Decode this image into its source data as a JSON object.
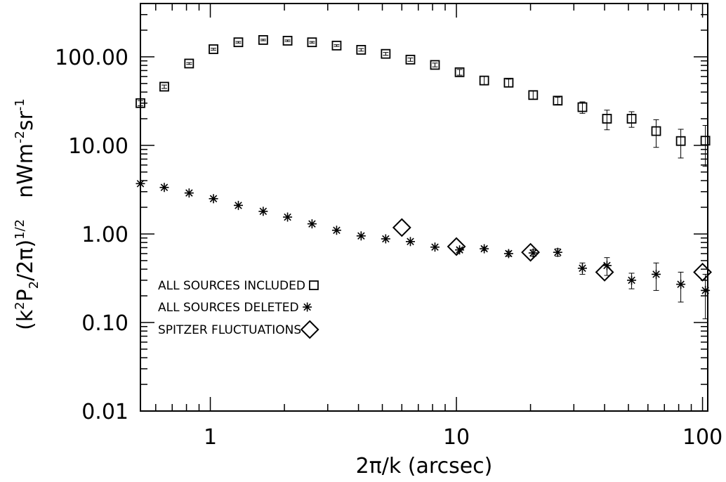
{
  "chart_data": {
    "type": "scatter",
    "title": "",
    "xlabel": "2π/k    (arcsec)",
    "ylabel": {
      "prefix": "(k",
      "sq": "2",
      "p": "P",
      "p_sub": "2",
      "div": "/2π)",
      "exp": "1/2",
      "units": "nWm",
      "units_exp1": "-2",
      "sr": "sr",
      "units_exp2": "-1"
    },
    "x_scale": "log",
    "y_scale": "log",
    "xlim": [
      0.52,
      105
    ],
    "ylim": [
      0.01,
      400
    ],
    "x_ticks": [
      {
        "value": 1,
        "label": "1"
      },
      {
        "value": 10,
        "label": "10"
      },
      {
        "value": 100,
        "label": "100"
      }
    ],
    "y_ticks": [
      {
        "value": 0.01,
        "label": "0.01"
      },
      {
        "value": 0.1,
        "label": "0.10"
      },
      {
        "value": 1,
        "label": "1.00"
      },
      {
        "value": 10,
        "label": "10.00"
      },
      {
        "value": 100,
        "label": "100.00"
      }
    ],
    "legend_position": "lower-left",
    "series": [
      {
        "name": "ALL SOURCES INCLUDED",
        "marker": "square",
        "points": [
          {
            "x": 0.52,
            "y": 30,
            "err": 2
          },
          {
            "x": 0.65,
            "y": 46,
            "err": 2
          },
          {
            "x": 0.82,
            "y": 84,
            "err": 2
          },
          {
            "x": 1.03,
            "y": 122,
            "err": 3
          },
          {
            "x": 1.3,
            "y": 146,
            "err": 3
          },
          {
            "x": 1.64,
            "y": 155,
            "err": 3
          },
          {
            "x": 2.06,
            "y": 152,
            "err": 3
          },
          {
            "x": 2.59,
            "y": 146,
            "err": 3
          },
          {
            "x": 3.26,
            "y": 134,
            "err": 3
          },
          {
            "x": 4.1,
            "y": 120,
            "err": 4
          },
          {
            "x": 5.16,
            "y": 108,
            "err": 4
          },
          {
            "x": 6.5,
            "y": 93,
            "err": 4
          },
          {
            "x": 8.18,
            "y": 81,
            "err": 4
          },
          {
            "x": 10.3,
            "y": 67,
            "err": 5
          },
          {
            "x": 12.97,
            "y": 54,
            "err": 6
          },
          {
            "x": 16.3,
            "y": 51,
            "err": 5
          },
          {
            "x": 20.5,
            "y": 37,
            "err": 4
          },
          {
            "x": 25.8,
            "y": 32,
            "err": 3
          },
          {
            "x": 32.5,
            "y": 27,
            "err": 4
          },
          {
            "x": 40.9,
            "y": 20,
            "err": 5
          },
          {
            "x": 51.5,
            "y": 20,
            "err": 4
          },
          {
            "x": 64.8,
            "y": 14.5,
            "err": 5
          },
          {
            "x": 81.6,
            "y": 11.2,
            "err": 4
          },
          {
            "x": 102.7,
            "y": 11.3,
            "err": 5.5
          }
        ]
      },
      {
        "name": "ALL SOURCES DELETED",
        "marker": "asterisk",
        "points": [
          {
            "x": 0.52,
            "y": 3.7,
            "err": 0
          },
          {
            "x": 0.65,
            "y": 3.35,
            "err": 0
          },
          {
            "x": 0.82,
            "y": 2.9,
            "err": 0
          },
          {
            "x": 1.03,
            "y": 2.5,
            "err": 0
          },
          {
            "x": 1.3,
            "y": 2.1,
            "err": 0
          },
          {
            "x": 1.64,
            "y": 1.8,
            "err": 0
          },
          {
            "x": 2.06,
            "y": 1.55,
            "err": 0
          },
          {
            "x": 2.59,
            "y": 1.3,
            "err": 0
          },
          {
            "x": 3.26,
            "y": 1.1,
            "err": 0
          },
          {
            "x": 4.1,
            "y": 0.95,
            "err": 0
          },
          {
            "x": 5.16,
            "y": 0.88,
            "err": 0
          },
          {
            "x": 6.5,
            "y": 0.82,
            "err": 0
          },
          {
            "x": 8.18,
            "y": 0.71,
            "err": 0
          },
          {
            "x": 10.3,
            "y": 0.66,
            "err": 0.03
          },
          {
            "x": 12.97,
            "y": 0.68,
            "err": 0.03
          },
          {
            "x": 16.3,
            "y": 0.6,
            "err": 0.04
          },
          {
            "x": 20.5,
            "y": 0.61,
            "err": 0.05
          },
          {
            "x": 25.8,
            "y": 0.62,
            "err": 0.06
          },
          {
            "x": 32.5,
            "y": 0.41,
            "err": 0.06
          },
          {
            "x": 40.9,
            "y": 0.44,
            "err": 0.1
          },
          {
            "x": 51.5,
            "y": 0.3,
            "err": 0.06
          },
          {
            "x": 64.8,
            "y": 0.35,
            "err": 0.12
          },
          {
            "x": 81.6,
            "y": 0.27,
            "err": 0.1
          },
          {
            "x": 102.7,
            "y": 0.23,
            "err": 0.12
          }
        ]
      },
      {
        "name": "SPITZER FLUCTUATIONS",
        "marker": "diamond",
        "points": [
          {
            "x": 6.0,
            "y": 1.18
          },
          {
            "x": 10.0,
            "y": 0.72
          },
          {
            "x": 20.0,
            "y": 0.62
          },
          {
            "x": 40.0,
            "y": 0.37
          },
          {
            "x": 100.0,
            "y": 0.37
          }
        ]
      }
    ]
  }
}
